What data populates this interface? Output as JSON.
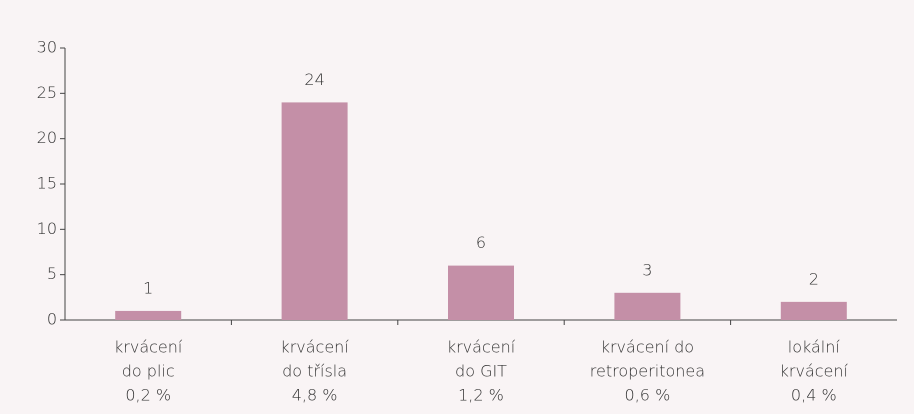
{
  "chart_data": {
    "type": "bar",
    "categories": [
      [
        "krvácení",
        "do plic",
        "0,2 %"
      ],
      [
        "krvácení",
        "do třísla",
        "4,8 %"
      ],
      [
        "krvácení",
        "do GIT",
        "1,2 %"
      ],
      [
        "krvácení do",
        "retroperitonea",
        "0,6 %"
      ],
      [
        "lokální",
        "krvácení",
        "0,4 %"
      ]
    ],
    "values": [
      1,
      24,
      6,
      3,
      2
    ],
    "color": "#c48fa7",
    "ylim": [
      0,
      30
    ],
    "yticks": [
      0,
      5,
      10,
      15,
      20,
      25,
      30
    ],
    "grid": false
  }
}
